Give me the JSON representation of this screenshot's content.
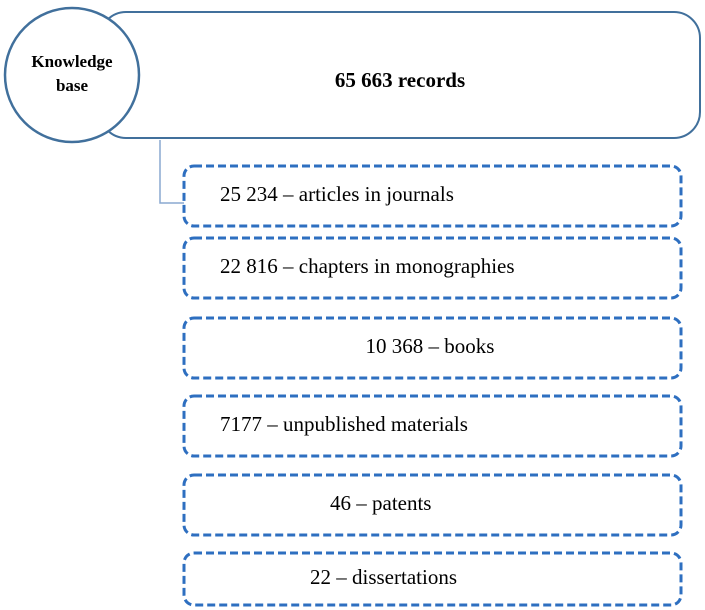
{
  "root": {
    "label_lines": [
      "Knowledge",
      "base"
    ],
    "total": "65 663 records"
  },
  "items": [
    "25 234 – articles in journals",
    "22 816 – chapters in monographies",
    "10 368 – books",
    "7177 – unpublished materials",
    "46 – patents",
    "22 – dissertations"
  ]
}
